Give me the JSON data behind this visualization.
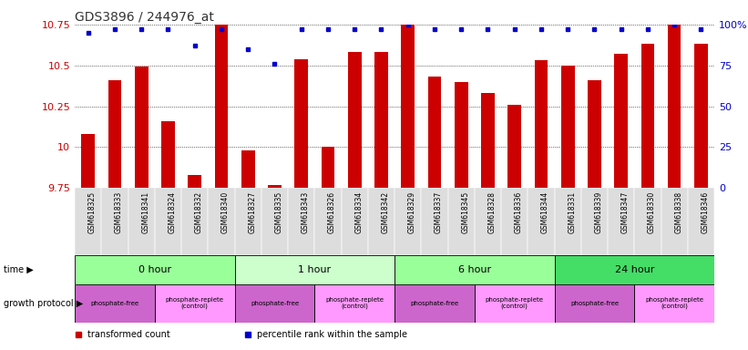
{
  "title": "GDS3896 / 244976_at",
  "samples": [
    "GSM618325",
    "GSM618333",
    "GSM618341",
    "GSM618324",
    "GSM618332",
    "GSM618340",
    "GSM618327",
    "GSM618335",
    "GSM618343",
    "GSM618326",
    "GSM618334",
    "GSM618342",
    "GSM618329",
    "GSM618337",
    "GSM618345",
    "GSM618328",
    "GSM618336",
    "GSM618344",
    "GSM618331",
    "GSM618339",
    "GSM618347",
    "GSM618330",
    "GSM618338",
    "GSM618346"
  ],
  "transformed_count": [
    10.08,
    10.41,
    10.49,
    10.16,
    9.83,
    10.75,
    9.98,
    9.77,
    10.54,
    10.0,
    10.58,
    10.58,
    10.75,
    10.43,
    10.4,
    10.33,
    10.26,
    10.53,
    10.5,
    10.41,
    10.57,
    10.63,
    10.75,
    10.63
  ],
  "percentile_rank": [
    95,
    97,
    97,
    97,
    87,
    97,
    85,
    76,
    97,
    97,
    97,
    97,
    100,
    97,
    97,
    97,
    97,
    97,
    97,
    97,
    97,
    97,
    100,
    97
  ],
  "ylim": [
    9.75,
    10.75
  ],
  "yticks": [
    9.75,
    10.0,
    10.25,
    10.5,
    10.75
  ],
  "ytick_labels": [
    "9.75",
    "10",
    "10.25",
    "10.5",
    "10.75"
  ],
  "y2ticks": [
    0,
    25,
    50,
    75,
    100
  ],
  "y2tick_labels": [
    "0",
    "25",
    "50",
    "75",
    "100%"
  ],
  "bar_color": "#cc0000",
  "dot_color": "#0000cc",
  "title_color": "#333333",
  "left_label_color": "#cc0000",
  "right_label_color": "#0000cc",
  "time_groups": [
    {
      "label": "0 hour",
      "start": 0,
      "end": 6,
      "color": "#99ff99"
    },
    {
      "label": "1 hour",
      "start": 6,
      "end": 12,
      "color": "#ccffcc"
    },
    {
      "label": "6 hour",
      "start": 12,
      "end": 18,
      "color": "#99ff99"
    },
    {
      "label": "24 hour",
      "start": 18,
      "end": 24,
      "color": "#44dd66"
    }
  ],
  "protocol_groups": [
    {
      "label": "phosphate-free",
      "start": 0,
      "end": 3,
      "color": "#cc66cc"
    },
    {
      "label": "phosphate-replete\n(control)",
      "start": 3,
      "end": 6,
      "color": "#ff99ff"
    },
    {
      "label": "phosphate-free",
      "start": 6,
      "end": 9,
      "color": "#cc66cc"
    },
    {
      "label": "phosphate-replete\n(control)",
      "start": 9,
      "end": 12,
      "color": "#ff99ff"
    },
    {
      "label": "phosphate-free",
      "start": 12,
      "end": 15,
      "color": "#cc66cc"
    },
    {
      "label": "phosphate-replete\n(control)",
      "start": 15,
      "end": 18,
      "color": "#ff99ff"
    },
    {
      "label": "phosphate-free",
      "start": 18,
      "end": 21,
      "color": "#cc66cc"
    },
    {
      "label": "phosphate-replete\n(control)",
      "start": 21,
      "end": 24,
      "color": "#ff99ff"
    }
  ],
  "time_row_label": "time",
  "protocol_row_label": "growth protocol",
  "legend_bar_label": "transformed count",
  "legend_dot_label": "percentile rank within the sample",
  "background_color": "#ffffff",
  "tick_label_bg": "#dddddd"
}
